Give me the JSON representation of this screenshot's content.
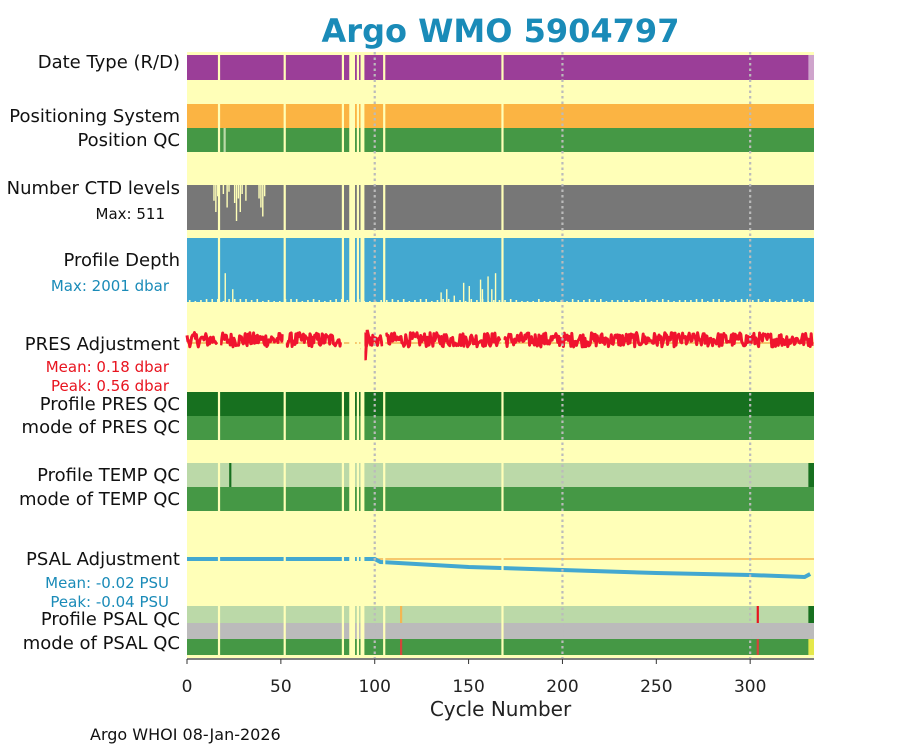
{
  "title": "Argo WMO 5904797",
  "footer": "Argo WHOI 08-Jan-2026",
  "colors": {
    "background": "#ffffb8",
    "date_type": "#9b3e98",
    "positioning": "#fbb443",
    "qc_good": "#459845",
    "qc_dark": "#17701f",
    "qc_light": "#bbd9a8",
    "ctd": "#777777",
    "depth": "#43a8d0",
    "pres": "#f0142e",
    "psal": "#43a8d0",
    "grey": "#bbbbbb",
    "zero_line": "#f3b653",
    "title": "#1a8bb8"
  },
  "chart_data": {
    "type": "heatmap",
    "title": "Argo WMO 5904797",
    "xlabel": "Cycle Number",
    "xlim": [
      0,
      334
    ],
    "xticks": [
      0,
      50,
      100,
      150,
      200,
      250,
      300
    ],
    "gap_cycles": [
      17,
      52,
      83,
      87,
      91,
      93,
      105,
      168
    ],
    "dotted_cycles": [
      100,
      200,
      300
    ],
    "rows": [
      {
        "label": "Date Type (R/D)",
        "type": "band",
        "color": "date_type",
        "end_color": "#cfa4cc",
        "end_from": 331
      },
      {
        "label": "Positioning System",
        "type": "band",
        "color": "positioning"
      },
      {
        "label": "Position QC",
        "type": "band",
        "color": "qc_good",
        "marks": [
          {
            "cycle": 20,
            "color": "#bbd9a8"
          }
        ]
      },
      {
        "label": "Number CTD levels",
        "type": "ctd",
        "color": "ctd",
        "sublabel": "Max: 511"
      },
      {
        "label": "Profile Depth",
        "type": "depth",
        "color": "depth",
        "sublabel": "Max: 2001 dbar"
      },
      {
        "label": "PRES Adjustment",
        "type": "pres",
        "mean_label": "Mean: 0.18 dbar",
        "peak_label": "Peak: 0.56 dbar",
        "mean": 0.18,
        "peak": 0.56
      },
      {
        "label": "Profile PRES QC",
        "type": "band",
        "color": "qc_dark"
      },
      {
        "label": "mode of PRES QC",
        "type": "band",
        "color": "qc_good"
      },
      {
        "label": "Profile TEMP QC",
        "type": "band",
        "color": "qc_light",
        "marks": [
          {
            "cycle": 23,
            "color": "#17701f"
          }
        ],
        "end_color": "#17701f",
        "end_from": 331
      },
      {
        "label": "mode of TEMP QC",
        "type": "band",
        "color": "qc_good"
      },
      {
        "label": "PSAL Adjustment",
        "type": "psal",
        "mean_label": "Mean: -0.02 PSU",
        "peak_label": "Peak: -0.04 PSU",
        "mean": -0.02,
        "peak": -0.04
      },
      {
        "label": "Profile PSAL QC",
        "type": "band",
        "color": "qc_light",
        "marks": [
          {
            "cycle": 114,
            "color": "#f3b653"
          },
          {
            "cycle": 304,
            "color": "#e8141f"
          }
        ],
        "end_color": "#17701f",
        "end_from": 331
      },
      {
        "label": "",
        "type": "band",
        "color": "grey"
      },
      {
        "label": "mode of PSAL QC",
        "type": "band",
        "color": "qc_good",
        "marks": [
          {
            "cycle": 114,
            "color": "#d2453a"
          },
          {
            "cycle": 304,
            "color": "#d2453a"
          }
        ],
        "end_color": "#e5e84a",
        "end_from": 331
      }
    ]
  }
}
